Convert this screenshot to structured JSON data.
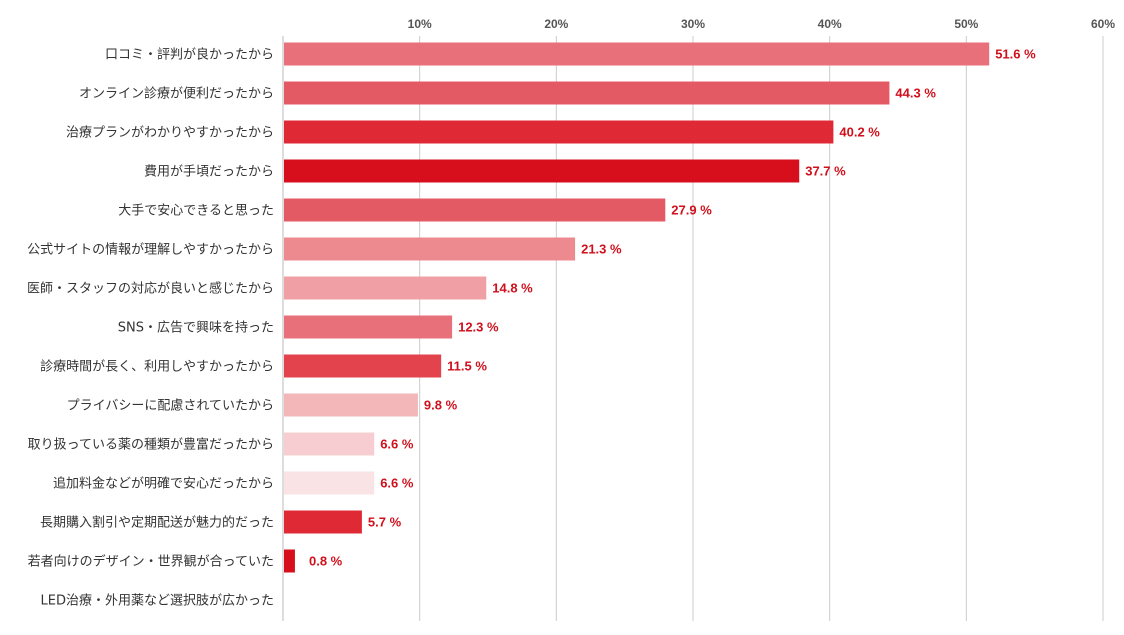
{
  "chart_data": {
    "type": "bar",
    "orientation": "horizontal",
    "title": "",
    "xlabel": "",
    "ylabel": "",
    "xlim": [
      0,
      60
    ],
    "xticks": [
      10,
      20,
      30,
      40,
      50,
      60
    ],
    "tick_labels": [
      "10%",
      "20%",
      "30%",
      "40%",
      "50%",
      "60%"
    ],
    "grid": true,
    "categories": [
      "口コミ・評判が良かったから",
      "オンライン診療が便利だったから",
      "治療プランがわかりやすかったから",
      "費用が手頃だったから",
      "大手で安心できると思った",
      "公式サイトの情報が理解しやすかったから",
      "医師・スタッフの対応が良いと感じたから",
      "SNS・広告で興味を持った",
      "診療時間が長く、利用しやすかったから",
      "プライバシーに配慮されていたから",
      "取り扱っている薬の種類が豊富だったから",
      "追加料金などが明確で安心だったから",
      "長期購入割引や定期配送が魅力的だった",
      "若者向けのデザイン・世界観が合っていた",
      "LED治療・外用薬など選択肢が広かった"
    ],
    "values": [
      51.6,
      44.3,
      40.2,
      37.7,
      27.9,
      21.3,
      14.8,
      12.3,
      11.5,
      9.8,
      6.6,
      6.6,
      5.7,
      0.8,
      null
    ],
    "value_labels": [
      "51.6 %",
      "44.3 %",
      "40.2 %",
      "37.7 %",
      "27.9 %",
      "21.3 %",
      "14.8 %",
      "12.3 %",
      "11.5 %",
      "9.8 %",
      "6.6 %",
      "6.6 %",
      "5.7 %",
      "0.8 %",
      ""
    ],
    "colors": [
      "#e8707a",
      "#e45a64",
      "#df2a36",
      "#d70f1c",
      "#e45a64",
      "#ec8a90",
      "#f0a0a5",
      "#e8707a",
      "#e3434d",
      "#f3b7ba",
      "#f7cdd2",
      "#fae3e5",
      "#df2a36",
      "#d70f1c",
      "#ffffff"
    ],
    "value_label_color": "#d0101c"
  }
}
